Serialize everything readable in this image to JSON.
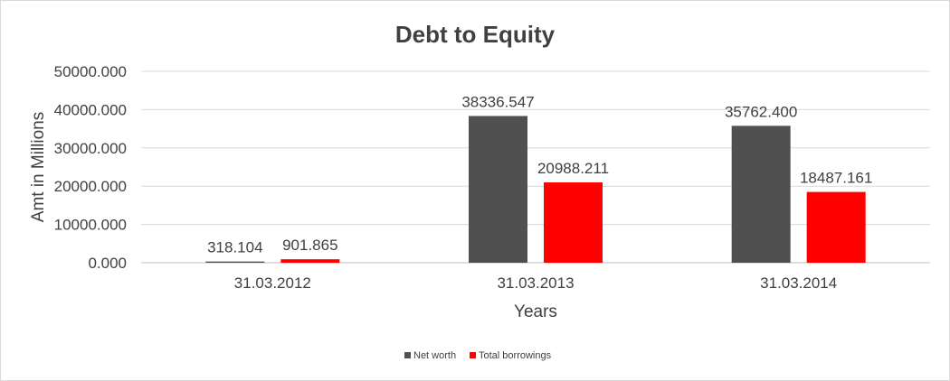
{
  "chart_data": {
    "type": "bar",
    "title": "Debt to Equity",
    "xlabel": "Years",
    "ylabel": "Amt in Millions",
    "categories": [
      "31.03.2012",
      "31.03.2013",
      "31.03.2014"
    ],
    "series": [
      {
        "name": "Net worth",
        "color": "#505050",
        "values": [
          318.104,
          38336.547,
          35762.4
        ],
        "labels": [
          "318.104",
          "38336.547",
          "35762.400"
        ]
      },
      {
        "name": "Total borrowings",
        "color": "#ff0000",
        "values": [
          901.865,
          20988.211,
          18487.161
        ],
        "labels": [
          "901.865",
          "20988.211",
          "18487.161"
        ]
      }
    ],
    "ylim": [
      0,
      50000
    ],
    "yticks": [
      "0.000",
      "10000.000",
      "20000.000",
      "30000.000",
      "40000.000",
      "50000.000"
    ],
    "grid": true,
    "legend_position": "bottom"
  }
}
